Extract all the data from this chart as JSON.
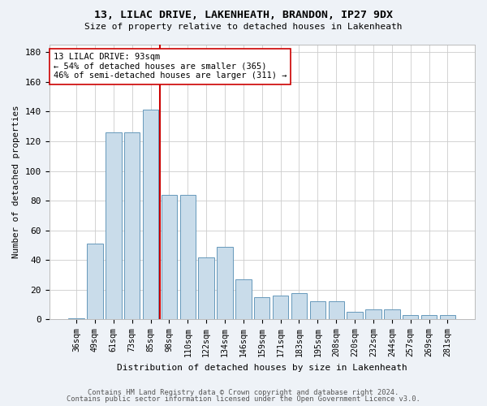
{
  "title1": "13, LILAC DRIVE, LAKENHEATH, BRANDON, IP27 9DX",
  "title2": "Size of property relative to detached houses in Lakenheath",
  "xlabel": "Distribution of detached houses by size in Lakenheath",
  "ylabel": "Number of detached properties",
  "categories": [
    "36sqm",
    "49sqm",
    "61sqm",
    "73sqm",
    "85sqm",
    "98sqm",
    "110sqm",
    "122sqm",
    "134sqm",
    "146sqm",
    "159sqm",
    "171sqm",
    "183sqm",
    "195sqm",
    "208sqm",
    "220sqm",
    "232sqm",
    "244sqm",
    "257sqm",
    "269sqm",
    "281sqm"
  ],
  "values": [
    1,
    51,
    126,
    126,
    141,
    84,
    84,
    42,
    49,
    27,
    15,
    16,
    18,
    12,
    12,
    5,
    7,
    7,
    3,
    3,
    3
  ],
  "bar_color": "#c9dcea",
  "bar_edge_color": "#6699bb",
  "vline_x": 4.5,
  "vline_color": "#cc0000",
  "annotation_text": "13 LILAC DRIVE: 93sqm\n← 54% of detached houses are smaller (365)\n46% of semi-detached houses are larger (311) →",
  "annotation_box_color": "white",
  "annotation_box_edge": "#cc0000",
  "ylim": [
    0,
    185
  ],
  "yticks": [
    0,
    20,
    40,
    60,
    80,
    100,
    120,
    140,
    160,
    180
  ],
  "footer1": "Contains HM Land Registry data © Crown copyright and database right 2024.",
  "footer2": "Contains public sector information licensed under the Open Government Licence v3.0.",
  "background_color": "#eef2f7",
  "plot_bg_color": "#ffffff"
}
